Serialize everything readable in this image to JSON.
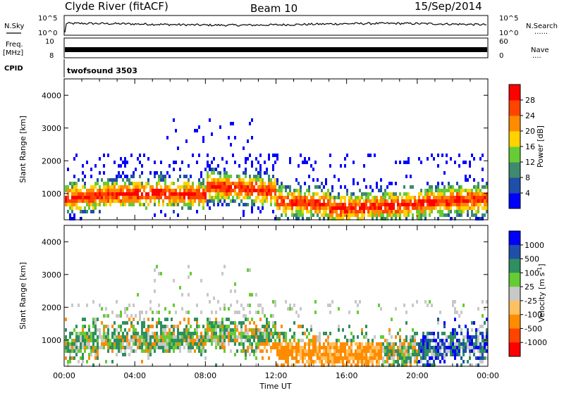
{
  "header": {
    "station": "Clyde River (fitACF)",
    "beam": "Beam 10",
    "date": "15/Sep/2014"
  },
  "top_panels": {
    "nsky_label": "N.Sky",
    "nsky_ticks": [
      "10^5",
      "10^0"
    ],
    "nsearch_label": "N.Search",
    "nsearch_dots": "......",
    "nsearch_ticks": [
      "10^5",
      "10^0"
    ],
    "freq_label_1": "Freq.",
    "freq_label_2": "[MHz]",
    "freq_ticks": [
      "10",
      "8"
    ],
    "nave_label": "Nave",
    "nave_dots": "....",
    "nave_ticks": [
      "60",
      "0"
    ],
    "cpid_label": "CPID",
    "cpid_value": "twofsound 3503"
  },
  "colors": {
    "power_scale": [
      "#0000ff",
      "#1f4fa8",
      "#3f8a6f",
      "#66cc33",
      "#ffd200",
      "#ff8c00",
      "#ff4400",
      "#ff0000"
    ],
    "velocity_scale": [
      "#ff0000",
      "#ff4400",
      "#ff8c00",
      "#ffc060",
      "#c8c8c8",
      "#66cc33",
      "#2f8f5f",
      "#1f4fa8",
      "#0000ff"
    ]
  },
  "chart_data": [
    {
      "type": "heatmap",
      "name": "power",
      "xlabel": "",
      "ylabel": "Slant Range [km]",
      "y_ticks": [
        "1000",
        "2000",
        "3000",
        "4000"
      ],
      "ylim": [
        200,
        4500
      ],
      "x_ticks": [
        "00:00",
        "04:00",
        "08:00",
        "12:00",
        "16:00",
        "20:00",
        "00:00"
      ],
      "colorbar_label": "Power [dB]",
      "colorbar_ticks": [
        "4",
        "8",
        "12",
        "16",
        "20",
        "24",
        "28"
      ],
      "colorbar_range": [
        0,
        32
      ]
    },
    {
      "type": "heatmap",
      "name": "velocity",
      "xlabel": "Time UT",
      "ylabel": "Slant Range [km]",
      "y_ticks": [
        "1000",
        "2000",
        "3000",
        "4000"
      ],
      "ylim": [
        200,
        4500
      ],
      "x_ticks": [
        "00:00",
        "04:00",
        "08:00",
        "12:00",
        "16:00",
        "20:00",
        "00:00"
      ],
      "colorbar_label": "Velocity [m s",
      "colorbar_label_sup": "-1",
      "colorbar_label_end": "]",
      "colorbar_ticks": [
        "1000",
        "500",
        "100",
        "25",
        "-25",
        "-100",
        "-500",
        "-1000"
      ]
    }
  ]
}
